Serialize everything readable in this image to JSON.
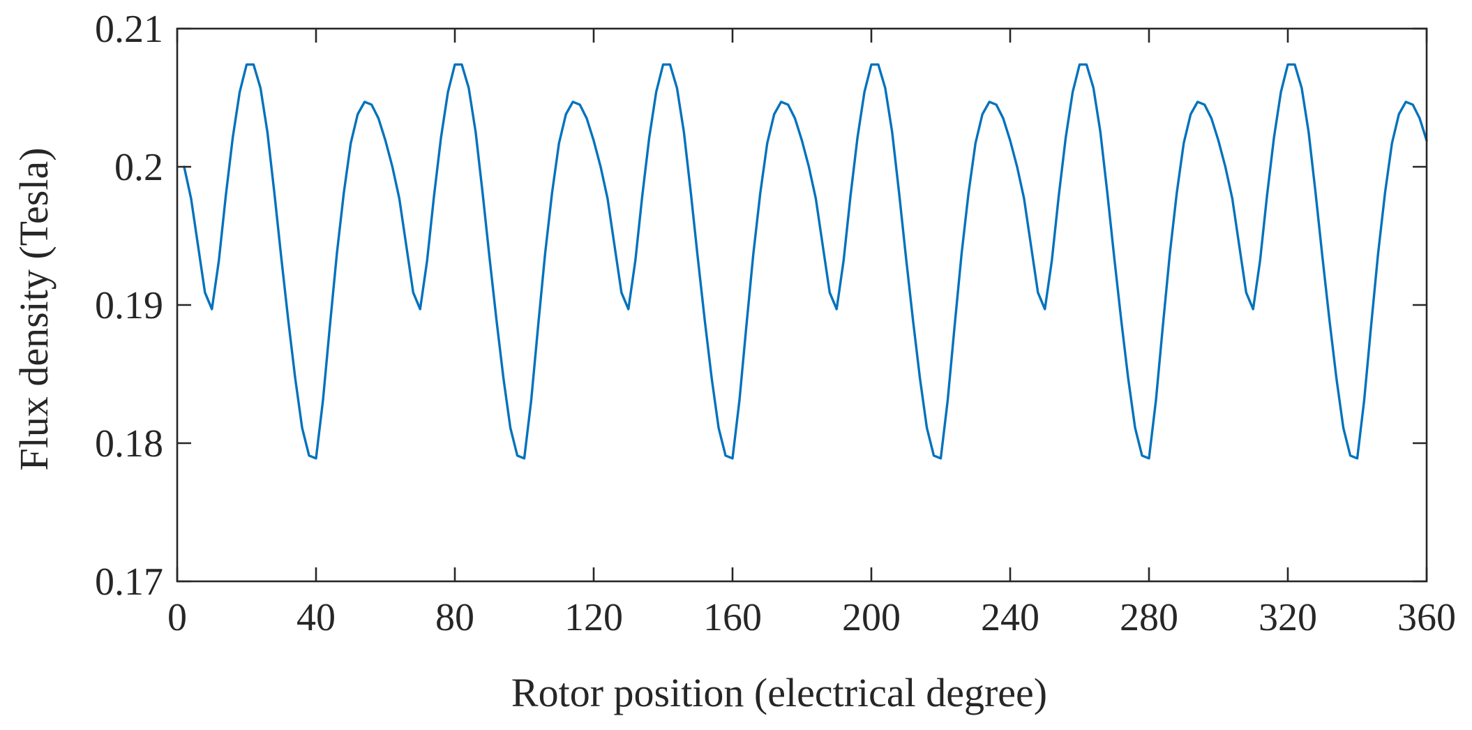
{
  "chart_data": {
    "type": "line",
    "title": "",
    "xlabel": "Rotor position (electrical degree)",
    "ylabel": "Flux density (Tesla)",
    "xlim": [
      0,
      360
    ],
    "ylim": [
      0.17,
      0.21
    ],
    "xticks": [
      0,
      40,
      80,
      120,
      160,
      200,
      240,
      280,
      320,
      360
    ],
    "xtick_labels": [
      "0",
      "40",
      "80",
      "120",
      "160",
      "200",
      "240",
      "280",
      "320",
      "360"
    ],
    "yticks": [
      0.17,
      0.18,
      0.19,
      0.2,
      0.21
    ],
    "ytick_labels": [
      "0.17",
      "0.18",
      "0.19",
      "0.2",
      "0.21"
    ],
    "grid": false,
    "legend": "none",
    "colors": {
      "line": "#0072BD",
      "axes": "#262626"
    },
    "series": [
      {
        "x": [
          2,
          4,
          6,
          8,
          10,
          12,
          14,
          16,
          18,
          20,
          22,
          24,
          26,
          28,
          30,
          32,
          34,
          36,
          38,
          40,
          42,
          44,
          46,
          48,
          50,
          52,
          54,
          56,
          58,
          60,
          62,
          64,
          66,
          68,
          70,
          72,
          74,
          76,
          78,
          80,
          82,
          84,
          86,
          88,
          90,
          92,
          94,
          96,
          98,
          100,
          102,
          104,
          106,
          108,
          110,
          112,
          114,
          116,
          118,
          120,
          122,
          124,
          126,
          128,
          130,
          132,
          134,
          136,
          138,
          140,
          142,
          144,
          146,
          148,
          150,
          152,
          154,
          156,
          158,
          160,
          162,
          164,
          166,
          168,
          170,
          172,
          174,
          176,
          178,
          180,
          182,
          184,
          186,
          188,
          190,
          192,
          194,
          196,
          198,
          200,
          202,
          204,
          206,
          208,
          210,
          212,
          214,
          216,
          218,
          220,
          222,
          224,
          226,
          228,
          230,
          232,
          234,
          236,
          238,
          240,
          242,
          244,
          246,
          248,
          250,
          252,
          254,
          256,
          258,
          260,
          262,
          264,
          266,
          268,
          270,
          272,
          274,
          276,
          278,
          280,
          282,
          284,
          286,
          288,
          290,
          292,
          294,
          296,
          298,
          300,
          302,
          304,
          306,
          308,
          310,
          312,
          314,
          316,
          318,
          320,
          322,
          324,
          326,
          328,
          330,
          332,
          334,
          336,
          338,
          340,
          342,
          344,
          346,
          348,
          350,
          352,
          354,
          356,
          358,
          360
        ],
        "values": [
          0.2,
          0.1977,
          0.1943,
          0.1909,
          0.1897,
          0.1932,
          0.1979,
          0.2021,
          0.2054,
          0.2074,
          0.2074,
          0.2057,
          0.2025,
          0.1981,
          0.1934,
          0.1889,
          0.1847,
          0.1811,
          0.1791,
          0.1789,
          0.1831,
          0.1885,
          0.1937,
          0.1981,
          0.2017,
          0.2038,
          0.2047,
          0.2045,
          0.2035,
          0.2019,
          0.2,
          0.1977,
          0.1943,
          0.1909,
          0.1897,
          0.1932,
          0.1979,
          0.2021,
          0.2054,
          0.2074,
          0.2074,
          0.2057,
          0.2025,
          0.1981,
          0.1934,
          0.1889,
          0.1847,
          0.1811,
          0.1791,
          0.1789,
          0.1831,
          0.1885,
          0.1937,
          0.1981,
          0.2017,
          0.2038,
          0.2047,
          0.2045,
          0.2035,
          0.2019,
          0.2,
          0.1977,
          0.1943,
          0.1909,
          0.1897,
          0.1932,
          0.1979,
          0.2021,
          0.2054,
          0.2074,
          0.2074,
          0.2057,
          0.2025,
          0.1981,
          0.1934,
          0.1889,
          0.1847,
          0.1811,
          0.1791,
          0.1789,
          0.1831,
          0.1885,
          0.1937,
          0.1981,
          0.2017,
          0.2038,
          0.2047,
          0.2045,
          0.2035,
          0.2019,
          0.2,
          0.1977,
          0.1943,
          0.1909,
          0.1897,
          0.1932,
          0.1979,
          0.2021,
          0.2054,
          0.2074,
          0.2074,
          0.2057,
          0.2025,
          0.1981,
          0.1934,
          0.1889,
          0.1847,
          0.1811,
          0.1791,
          0.1789,
          0.1831,
          0.1885,
          0.1937,
          0.1981,
          0.2017,
          0.2038,
          0.2047,
          0.2045,
          0.2035,
          0.2019,
          0.2,
          0.1977,
          0.1943,
          0.1909,
          0.1897,
          0.1932,
          0.1979,
          0.2021,
          0.2054,
          0.2074,
          0.2074,
          0.2057,
          0.2025,
          0.1981,
          0.1934,
          0.1889,
          0.1847,
          0.1811,
          0.1791,
          0.1789,
          0.1831,
          0.1885,
          0.1937,
          0.1981,
          0.2017,
          0.2038,
          0.2047,
          0.2045,
          0.2035,
          0.2019,
          0.2,
          0.1977,
          0.1943,
          0.1909,
          0.1897,
          0.1932,
          0.1979,
          0.2021,
          0.2054,
          0.2074,
          0.2074,
          0.2057,
          0.2025,
          0.1981,
          0.1934,
          0.1889,
          0.1847,
          0.1811,
          0.1791,
          0.1789,
          0.1831,
          0.1885,
          0.1937,
          0.1981,
          0.2017,
          0.2038,
          0.2047,
          0.2045,
          0.2035,
          0.2019
        ]
      }
    ]
  }
}
